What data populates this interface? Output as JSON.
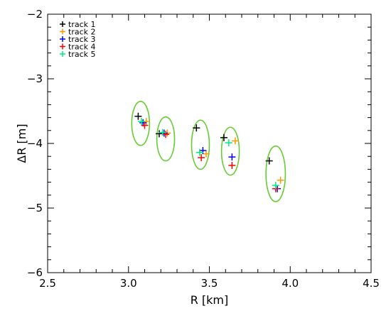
{
  "chart_data": {
    "type": "scatter",
    "title": "",
    "xlabel": "R [km]",
    "ylabel": "ΔR [m]",
    "xlim": [
      2.5,
      4.5
    ],
    "ylim": [
      -6,
      -2
    ],
    "xticks": [
      2.5,
      3.0,
      3.5,
      4.0,
      4.5
    ],
    "xtick_labels": [
      "2.5",
      "3.0",
      "3.5",
      "4.0",
      "4.5"
    ],
    "yticks": [
      -6,
      -5,
      -4,
      -3,
      -2
    ],
    "ytick_labels": [
      "−6",
      "−5",
      "−4",
      "−3",
      "−2"
    ],
    "grid": false,
    "legend_position": "top-left",
    "series": [
      {
        "name": "track 1",
        "color": "#000000",
        "marker": "plus",
        "points": [
          [
            3.06,
            -3.58
          ],
          [
            3.19,
            -3.85
          ],
          [
            3.42,
            -3.76
          ],
          [
            3.59,
            -3.91
          ],
          [
            3.87,
            -4.27
          ]
        ]
      },
      {
        "name": "track 2",
        "color": "#ff9900",
        "marker": "plus",
        "points": [
          [
            3.11,
            -3.66
          ],
          [
            3.24,
            -3.84
          ],
          [
            3.48,
            -4.16
          ],
          [
            3.66,
            -3.96
          ],
          [
            3.94,
            -4.57
          ]
        ]
      },
      {
        "name": "track 3",
        "color": "#0000ff",
        "marker": "plus",
        "points": [
          [
            3.09,
            -3.68
          ],
          [
            3.22,
            -3.84
          ],
          [
            3.46,
            -4.11
          ],
          [
            3.64,
            -4.21
          ],
          [
            3.92,
            -4.7
          ]
        ]
      },
      {
        "name": "track 4",
        "color": "#ff0000",
        "marker": "plus",
        "points": [
          [
            3.1,
            -3.72
          ],
          [
            3.23,
            -3.86
          ],
          [
            3.45,
            -4.22
          ],
          [
            3.64,
            -4.34
          ],
          [
            3.91,
            -4.7
          ]
        ]
      },
      {
        "name": "track 5",
        "color": "#00ee77",
        "marker": "plus",
        "points": [
          [
            3.08,
            -3.66
          ],
          [
            3.21,
            -3.83
          ],
          [
            3.44,
            -4.14
          ],
          [
            3.62,
            -3.99
          ],
          [
            3.91,
            -4.65
          ]
        ]
      }
    ],
    "ellipses": {
      "color": "#66cc33",
      "items": [
        {
          "cx": 3.075,
          "cy": -3.69,
          "rx": 0.055,
          "ry": 0.34
        },
        {
          "cx": 3.23,
          "cy": -3.93,
          "rx": 0.055,
          "ry": 0.34
        },
        {
          "cx": 3.445,
          "cy": -4.02,
          "rx": 0.055,
          "ry": 0.38
        },
        {
          "cx": 3.63,
          "cy": -4.12,
          "rx": 0.055,
          "ry": 0.37
        },
        {
          "cx": 3.91,
          "cy": -4.47,
          "rx": 0.06,
          "ry": 0.43
        }
      ]
    }
  }
}
